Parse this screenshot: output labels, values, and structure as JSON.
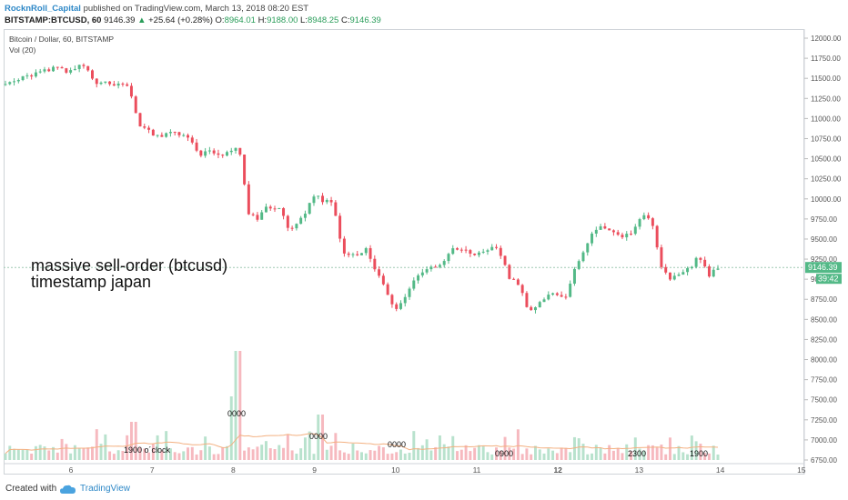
{
  "header": {
    "author": "RocknRoll_Capital",
    "published": "published on TradingView.com, March 13, 2018 08:20 EST",
    "symbol": "BITSTAMP:BTCUSD, 60",
    "last": "9146.39",
    "change_arrow": "▲",
    "change": "+25.64 (+0.28%)",
    "o_label": "O:",
    "o_value": "8964.01",
    "h_label": "H:",
    "h_value": "9188.00",
    "l_label": "L:",
    "l_value": "8948.25",
    "c_label": "C:",
    "c_value": "9146.39"
  },
  "chart": {
    "title": "Bitcoin / Dollar, 60, BITSTAMP",
    "vol_label": "Vol (20)",
    "price_tag": "9146.39",
    "countdown_tag": "39:42",
    "colors": {
      "up": "#53b987",
      "down": "#eb4d5c",
      "vol_up": "#b8e2cd",
      "vol_down": "#f6b9bf",
      "ma": "#f3b080"
    }
  },
  "annotations": {
    "big_line1": "massive sell-order (btcusd)",
    "big_line2": "timestamp japan",
    "labels": [
      "0000",
      "0000",
      "0000",
      "0900",
      "1900 o´clock",
      "2300",
      "1900"
    ]
  },
  "footer": {
    "created": "Created with",
    "brand": "TradingView",
    "logo_icon": "tradingview-cloud-icon"
  },
  "chart_data": {
    "type": "candlestick",
    "title": "Bitcoin / Dollar, 60, BITSTAMP",
    "y_ticks": [
      "12000.00",
      "11750.00",
      "11500.00",
      "11250.00",
      "11000.00",
      "10750.00",
      "10500.00",
      "10250.00",
      "10000.00",
      "9750.00",
      "9500.00",
      "9250.00",
      "9000.00",
      "8750.00",
      "8500.00",
      "8250.00",
      "8000.00",
      "7750.00",
      "7500.00",
      "7250.00",
      "7000.00",
      "6750.00"
    ],
    "ylim": [
      6750,
      12000
    ],
    "x_ticks": [
      "6",
      "7",
      "8",
      "9",
      "10",
      "11",
      "12",
      "13",
      "14",
      "15"
    ],
    "price_path": [
      [
        0,
        11420
      ],
      [
        0.2,
        11460
      ],
      [
        0.4,
        11520
      ],
      [
        0.6,
        11560
      ],
      [
        1,
        11620
      ],
      [
        1.4,
        11590
      ],
      [
        1.6,
        11680
      ],
      [
        1.7,
        11600
      ],
      [
        1.9,
        11460
      ],
      [
        2.3,
        11430
      ],
      [
        2.6,
        11380
      ],
      [
        2.8,
        10930
      ],
      [
        3.1,
        10820
      ],
      [
        3.3,
        10740
      ],
      [
        3.5,
        10860
      ],
      [
        3.8,
        10780
      ],
      [
        4.1,
        10560
      ],
      [
        4.3,
        10620
      ],
      [
        4.5,
        10510
      ],
      [
        4.7,
        10620
      ],
      [
        4.9,
        10650
      ],
      [
        5.0,
        10380
      ],
      [
        5.1,
        9820
      ],
      [
        5.3,
        9760
      ],
      [
        5.5,
        9900
      ],
      [
        5.8,
        9880
      ],
      [
        6.0,
        9580
      ],
      [
        6.3,
        9820
      ],
      [
        6.5,
        10060
      ],
      [
        6.7,
        9980
      ],
      [
        6.9,
        9920
      ],
      [
        7.1,
        9350
      ],
      [
        7.3,
        9290
      ],
      [
        7.6,
        9360
      ],
      [
        7.8,
        9110
      ],
      [
        8.0,
        8890
      ],
      [
        8.2,
        8610
      ],
      [
        8.4,
        8760
      ],
      [
        8.6,
        9010
      ],
      [
        8.8,
        9080
      ],
      [
        9.0,
        9150
      ],
      [
        9.2,
        9220
      ],
      [
        9.4,
        9400
      ],
      [
        9.6,
        9380
      ],
      [
        9.8,
        9300
      ],
      [
        10.0,
        9340
      ],
      [
        10.2,
        9390
      ],
      [
        10.4,
        9350
      ],
      [
        10.6,
        9010
      ],
      [
        10.8,
        8930
      ],
      [
        11.0,
        8620
      ],
      [
        11.2,
        8680
      ],
      [
        11.5,
        8810
      ],
      [
        11.8,
        8760
      ],
      [
        12.0,
        9180
      ],
      [
        12.2,
        9350
      ],
      [
        12.4,
        9640
      ],
      [
        12.6,
        9650
      ],
      [
        12.8,
        9560
      ],
      [
        13.0,
        9500
      ],
      [
        13.2,
        9600
      ],
      [
        13.4,
        9790
      ],
      [
        13.6,
        9730
      ],
      [
        13.8,
        9170
      ],
      [
        14.0,
        9020
      ],
      [
        14.2,
        9090
      ],
      [
        14.4,
        9130
      ],
      [
        14.6,
        9310
      ],
      [
        14.8,
        9050
      ],
      [
        15.0,
        9146
      ]
    ]
  }
}
